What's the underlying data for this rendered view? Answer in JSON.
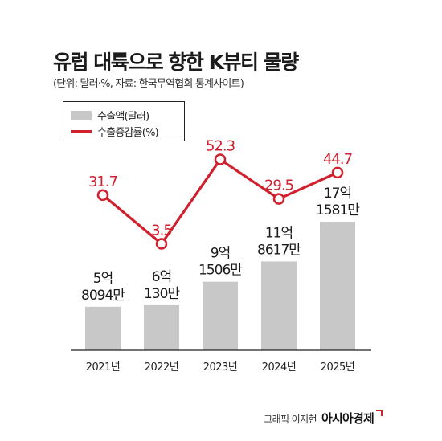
{
  "header": {
    "title": "유럽 대륙으로 향한 K뷰티 물량",
    "subtitle": "(단위: 달러·%, 자료: 한국무역협회 통계사이트)"
  },
  "legend": {
    "bar_label": "수출액(달러)",
    "line_label": "수출증감률(%)"
  },
  "credit": {
    "text": "그래픽 이지현",
    "logo": "아시아경제"
  },
  "colors": {
    "bar": "#c8c8c8",
    "line": "#d0202e",
    "axis": "#222222"
  },
  "chart_data": {
    "type": "bar",
    "categories": [
      "2021년",
      "2022년",
      "2023년",
      "2024년",
      "2025년"
    ],
    "series": [
      {
        "name": "수출액(달러)",
        "type": "bar",
        "values": [
          580940000,
          601300000,
          915060000,
          1186170000,
          1715810000
        ],
        "labels_line1": [
          "5억",
          "6억",
          "9억",
          "11억",
          "17억"
        ],
        "labels_line2": [
          "8094만",
          "130만",
          "1506만",
          "8617만",
          "1581만"
        ]
      },
      {
        "name": "수출증감률(%)",
        "type": "line",
        "values": [
          31.7,
          3.5,
          52.3,
          29.5,
          44.7
        ],
        "labels": [
          "31.7",
          "3.5",
          "52.3",
          "29.5",
          "44.7"
        ]
      }
    ]
  }
}
